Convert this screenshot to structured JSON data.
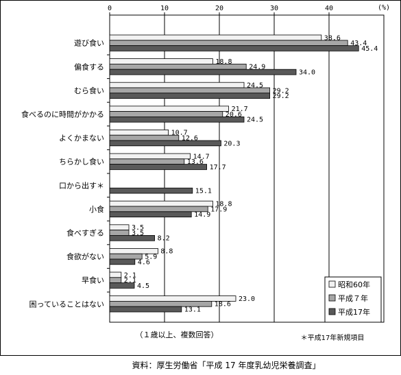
{
  "chart_data": {
    "type": "bar",
    "orientation": "horizontal",
    "unit": "(%)",
    "xlim": [
      0,
      50
    ],
    "x_ticks": [
      0,
      10,
      20,
      30,
      40
    ],
    "grid": true,
    "legend_position": "bottom-right",
    "categories": [
      "遊び食い",
      "偏食する",
      "むら食い",
      "食べるのに時間がかかる",
      "よくかまない",
      "ちらかし食い",
      "口から出す＊",
      "小食",
      "食べすぎる",
      "食欲がない",
      "早食い",
      "困っていることはない"
    ],
    "series": [
      {
        "name": "昭和60年",
        "color": "#f2f2f2",
        "values": [
          38.6,
          18.8,
          24.5,
          21.7,
          10.7,
          14.7,
          null,
          18.8,
          3.5,
          8.8,
          2.1,
          23.0
        ],
        "labels": [
          "38.6",
          "18.8",
          "24.5",
          "21.7",
          "10.7",
          "14.7",
          "",
          "18.8",
          "3.5",
          "8.8",
          "2.1",
          "23.0"
        ]
      },
      {
        "name": "平成７年",
        "color": "#a6a6a6",
        "values": [
          43.4,
          24.9,
          29.2,
          20.6,
          12.6,
          13.6,
          null,
          17.9,
          3.5,
          5.9,
          2.1,
          18.6
        ],
        "labels": [
          "43.4",
          "24.9",
          "29.2",
          "20.6",
          "12.6",
          "13.6",
          "",
          "17.9",
          "3.5",
          "5.9",
          "2.1",
          "18.6"
        ]
      },
      {
        "name": "平成17年",
        "color": "#595959",
        "values": [
          45.4,
          34.0,
          29.2,
          24.5,
          20.3,
          17.7,
          15.1,
          14.9,
          8.2,
          4.6,
          4.5,
          13.1
        ],
        "labels": [
          "45.4",
          "34.0",
          "29.2",
          "24.5",
          "20.3",
          "17.7",
          "15.1",
          "14.9",
          "8.2",
          "4.6",
          "4.5",
          "13.1"
        ]
      }
    ],
    "annotations": {
      "basis": "（１歳以上、複数回答）",
      "new_item": "＊平成17年新規項目"
    },
    "source": "資料：厚生労働省「平成 17 年度乳幼児栄養調査」"
  }
}
